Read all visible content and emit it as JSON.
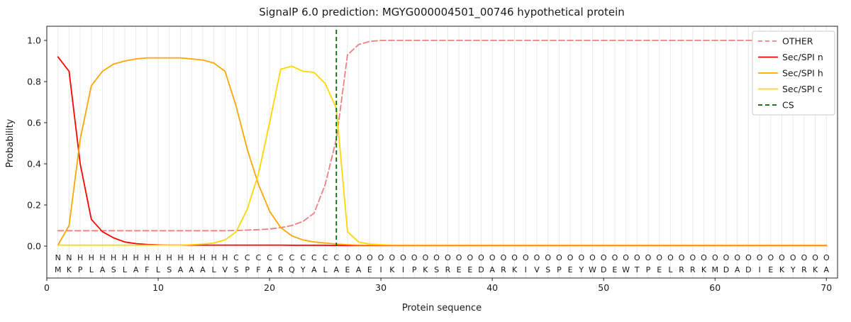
{
  "title": "SignalP 6.0 prediction: MGYG000004501_00746 hypothetical protein",
  "xlabel": "Protein sequence",
  "ylabel": "Probability",
  "chart_data": {
    "type": "line",
    "x_range": [
      1,
      70
    ],
    "xticks": [
      0,
      10,
      20,
      30,
      40,
      50,
      60,
      70
    ],
    "yticks": [
      "0.0",
      "0.2",
      "0.4",
      "0.6",
      "0.8",
      "1.0"
    ],
    "ylim": [
      0,
      1
    ],
    "grid": "vertical-per-residue",
    "legend_position": "upper right",
    "sequence": "MKPLASLAFLSAAALVSPFARQYALAEAEIKIPKSREEDARKIVSPEYWDEWTPELRRKMDADIEKYRKA",
    "regions": "NNHHHHHHHHHHHHHHCCCCCCCCCCOOOOOOOOOOOOOOOOOOOOOOOOOOOOOOOOOOOOOOOOOOOO",
    "region_colors": {
      "N": "#ff0000",
      "H": "#ffa600",
      "C": "#ffd700",
      "O": "#a6a6a6"
    },
    "series": [
      {
        "name": "OTHER",
        "color": "#f08080",
        "dash": true,
        "values": [
          0.075,
          0.075,
          0.075,
          0.075,
          0.075,
          0.075,
          0.075,
          0.075,
          0.075,
          0.075,
          0.075,
          0.075,
          0.075,
          0.075,
          0.075,
          0.075,
          0.076,
          0.078,
          0.08,
          0.083,
          0.09,
          0.1,
          0.12,
          0.16,
          0.3,
          0.52,
          0.93,
          0.98,
          0.995,
          1.0,
          1.0,
          1.0,
          1.0,
          1.0,
          1.0,
          1.0,
          1.0,
          1.0,
          1.0,
          1.0,
          1.0,
          1.0,
          1.0,
          1.0,
          1.0,
          1.0,
          1.0,
          1.0,
          1.0,
          1.0,
          1.0,
          1.0,
          1.0,
          1.0,
          1.0,
          1.0,
          1.0,
          1.0,
          1.0,
          1.0,
          1.0,
          1.0,
          1.0,
          1.0,
          1.0,
          1.0,
          1.0,
          1.0,
          1.0,
          1.0
        ]
      },
      {
        "name": "Sec/SPI n",
        "color": "#ff0000",
        "dash": false,
        "values": [
          0.92,
          0.85,
          0.4,
          0.13,
          0.07,
          0.04,
          0.02,
          0.012,
          0.008,
          0.006,
          0.005,
          0.005,
          0.005,
          0.005,
          0.005,
          0.005,
          0.005,
          0.005,
          0.005,
          0.005,
          0.005,
          0.004,
          0.004,
          0.004,
          0.004,
          0.003,
          0.003,
          0.003,
          0.003,
          0.003,
          0.003,
          0.003,
          0.003,
          0.003,
          0.003,
          0.003,
          0.003,
          0.003,
          0.003,
          0.003,
          0.003,
          0.003,
          0.003,
          0.003,
          0.003,
          0.003,
          0.003,
          0.003,
          0.003,
          0.003,
          0.003,
          0.003,
          0.003,
          0.003,
          0.003,
          0.003,
          0.003,
          0.003,
          0.003,
          0.003,
          0.003,
          0.003,
          0.003,
          0.003,
          0.003,
          0.003,
          0.003,
          0.003,
          0.003,
          0.003
        ]
      },
      {
        "name": "Sec/SPI h",
        "color": "#ffa600",
        "dash": false,
        "values": [
          0.005,
          0.1,
          0.52,
          0.78,
          0.85,
          0.885,
          0.9,
          0.91,
          0.915,
          0.915,
          0.915,
          0.915,
          0.91,
          0.905,
          0.89,
          0.85,
          0.68,
          0.47,
          0.3,
          0.17,
          0.09,
          0.05,
          0.03,
          0.02,
          0.015,
          0.01,
          0.007,
          0.005,
          0.005,
          0.005,
          0.005,
          0.005,
          0.005,
          0.005,
          0.005,
          0.005,
          0.005,
          0.005,
          0.005,
          0.005,
          0.005,
          0.005,
          0.005,
          0.005,
          0.005,
          0.005,
          0.005,
          0.005,
          0.005,
          0.005,
          0.005,
          0.005,
          0.005,
          0.005,
          0.005,
          0.005,
          0.005,
          0.005,
          0.005,
          0.005,
          0.005,
          0.005,
          0.005,
          0.005,
          0.005,
          0.005,
          0.005,
          0.005,
          0.005,
          0.005
        ]
      },
      {
        "name": "Sec/SPI c",
        "color": "#ffd700",
        "dash": false,
        "values": [
          0.005,
          0.005,
          0.005,
          0.005,
          0.005,
          0.005,
          0.005,
          0.005,
          0.005,
          0.005,
          0.005,
          0.005,
          0.007,
          0.01,
          0.015,
          0.03,
          0.07,
          0.18,
          0.35,
          0.6,
          0.86,
          0.875,
          0.85,
          0.845,
          0.79,
          0.67,
          0.07,
          0.02,
          0.01,
          0.007,
          0.005,
          0.005,
          0.005,
          0.005,
          0.005,
          0.005,
          0.005,
          0.005,
          0.005,
          0.005,
          0.005,
          0.005,
          0.005,
          0.005,
          0.005,
          0.005,
          0.005,
          0.005,
          0.005,
          0.005,
          0.005,
          0.005,
          0.005,
          0.005,
          0.005,
          0.005,
          0.005,
          0.005,
          0.005,
          0.005,
          0.005,
          0.005,
          0.005,
          0.005,
          0.005,
          0.005,
          0.005,
          0.005,
          0.005,
          0.005
        ]
      }
    ],
    "cs_line": {
      "name": "CS",
      "position": 26,
      "color": "#006400",
      "dash": true
    }
  }
}
